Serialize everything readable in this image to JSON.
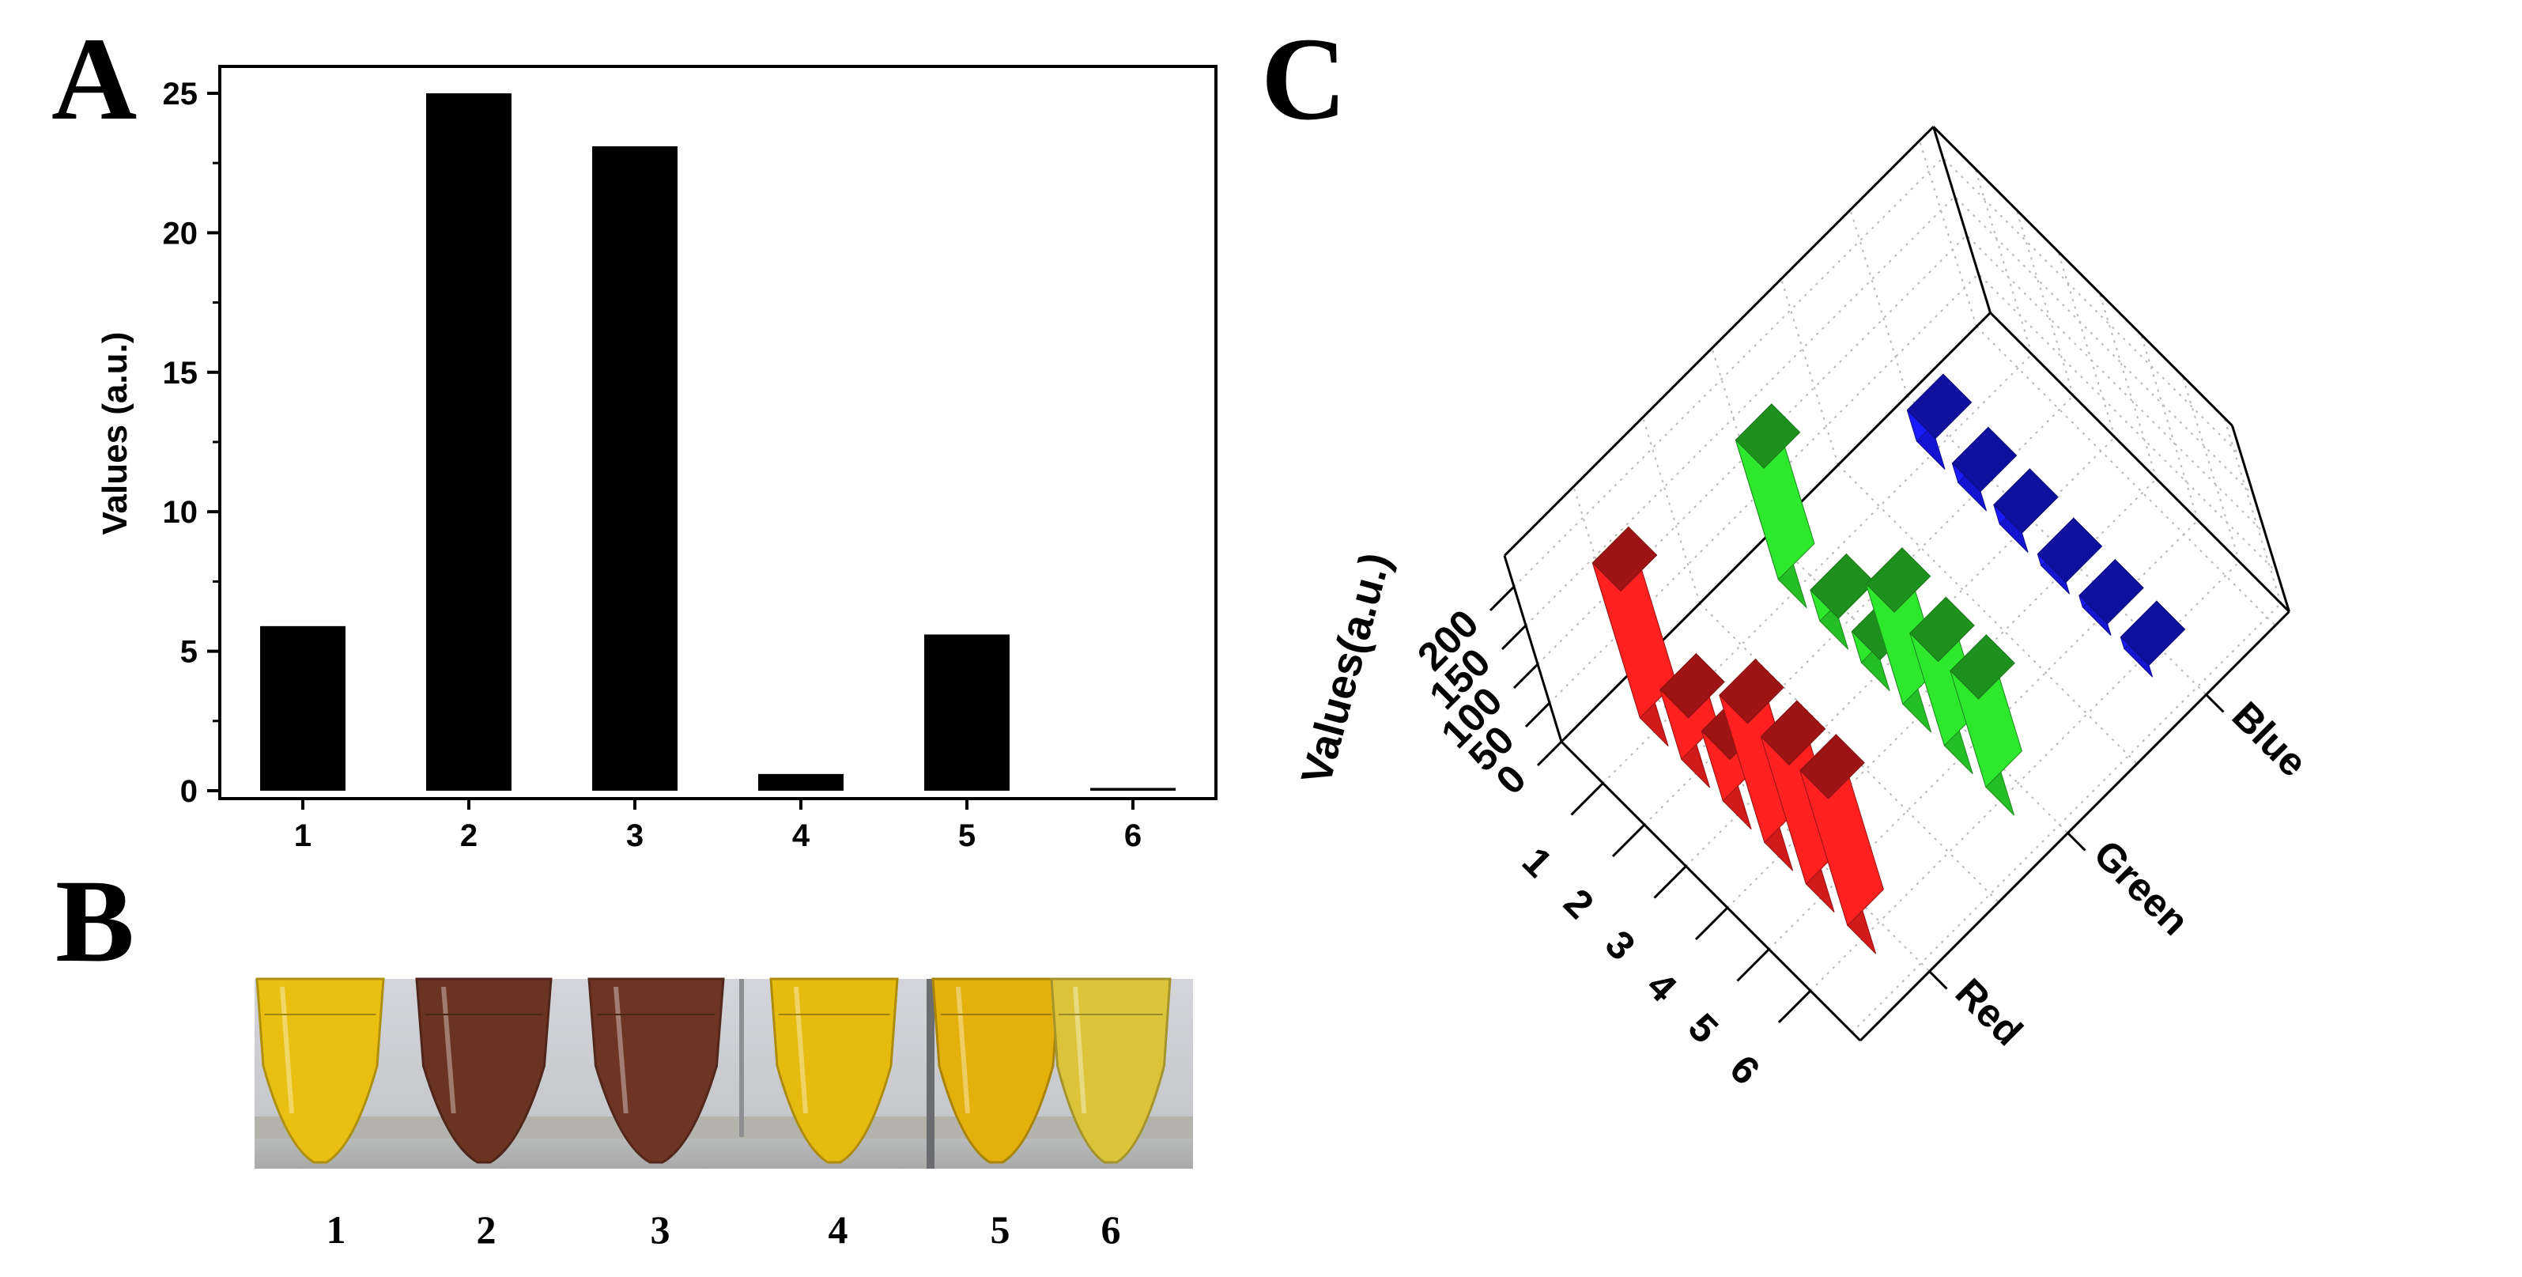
{
  "panels": {
    "a": "A",
    "b": "B",
    "c": "C"
  },
  "chart_data": [
    {
      "id": "A",
      "type": "bar",
      "categories": [
        "1",
        "2",
        "3",
        "4",
        "5",
        "6"
      ],
      "values": [
        5.9,
        25.0,
        23.1,
        0.6,
        5.6,
        0.1
      ],
      "ylabel": "Values (a.u.)",
      "xlabel": "",
      "ylim": [
        -0.3,
        26
      ],
      "yticks": [
        "0",
        "5",
        "10",
        "15",
        "20",
        "25"
      ],
      "bar_color": "#000000"
    },
    {
      "id": "C",
      "type": "bar",
      "subtype": "3d-bar",
      "categories": [
        "1",
        "2",
        "3",
        "4",
        "5",
        "6"
      ],
      "channels": [
        "Red",
        "Green",
        "Blue"
      ],
      "series": [
        {
          "name": "Red",
          "color": "#ff2020",
          "values": [
            200,
            90,
            90,
            190,
            190,
            200
          ]
        },
        {
          "name": "Green",
          "color": "#2ee82e",
          "values": [
            180,
            40,
            40,
            155,
            145,
            150
          ]
        },
        {
          "name": "Blue",
          "color": "#1a1aff",
          "values": [
            40,
            25,
            25,
            15,
            15,
            15
          ]
        }
      ],
      "zlabel": "Values(a.u.)",
      "zticks": [
        "0",
        "50",
        "100",
        "150",
        "200"
      ],
      "zlim": [
        0,
        240
      ]
    }
  ],
  "photo": {
    "tube_labels": [
      "1",
      "2",
      "3",
      "4",
      "5",
      "6"
    ],
    "tube_colors": [
      "#e9c012",
      "#6b3322",
      "#6e3524",
      "#e6bb10",
      "#e3b00c",
      "#dcc43a"
    ],
    "background": "#c9cbd0"
  }
}
